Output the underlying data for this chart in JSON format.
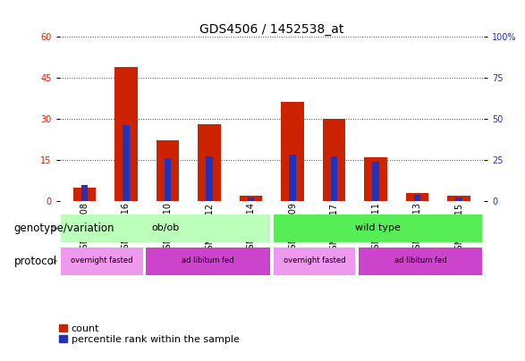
{
  "title": "GDS4506 / 1452538_at",
  "samples": [
    "GSM967008",
    "GSM967016",
    "GSM967010",
    "GSM967012",
    "GSM967014",
    "GSM967009",
    "GSM967017",
    "GSM967011",
    "GSM967013",
    "GSM967015"
  ],
  "count_values": [
    5,
    49,
    22,
    28,
    2,
    36,
    30,
    16,
    3,
    2
  ],
  "percentile_values": [
    10,
    46,
    26,
    27,
    2,
    28,
    27,
    24,
    4,
    2
  ],
  "ylim_left": [
    0,
    60
  ],
  "ylim_right": [
    0,
    100
  ],
  "yticks_left": [
    0,
    15,
    30,
    45,
    60
  ],
  "yticks_right": [
    0,
    25,
    50,
    75,
    100
  ],
  "bar_color_count": "#cc2200",
  "bar_color_percentile": "#2233bb",
  "bar_width": 0.55,
  "genotype_labels": [
    {
      "label": "ob/ob",
      "start": 0,
      "end": 5,
      "color": "#bbffbb"
    },
    {
      "label": "wild type",
      "start": 5,
      "end": 10,
      "color": "#55ee55"
    }
  ],
  "protocol_labels": [
    {
      "label": "overnight fasted",
      "start": 0,
      "end": 2,
      "color": "#ee99ee"
    },
    {
      "label": "ad libitum fed",
      "start": 2,
      "end": 5,
      "color": "#cc44cc"
    },
    {
      "label": "overnight fasted",
      "start": 5,
      "end": 7,
      "color": "#ee99ee"
    },
    {
      "label": "ad libitum fed",
      "start": 7,
      "end": 10,
      "color": "#cc44cc"
    }
  ],
  "bg_color": "#ffffff",
  "title_fontsize": 10,
  "tick_fontsize": 7,
  "legend_fontsize": 8,
  "label_fontsize": 8,
  "row_label_fontsize": 8.5
}
